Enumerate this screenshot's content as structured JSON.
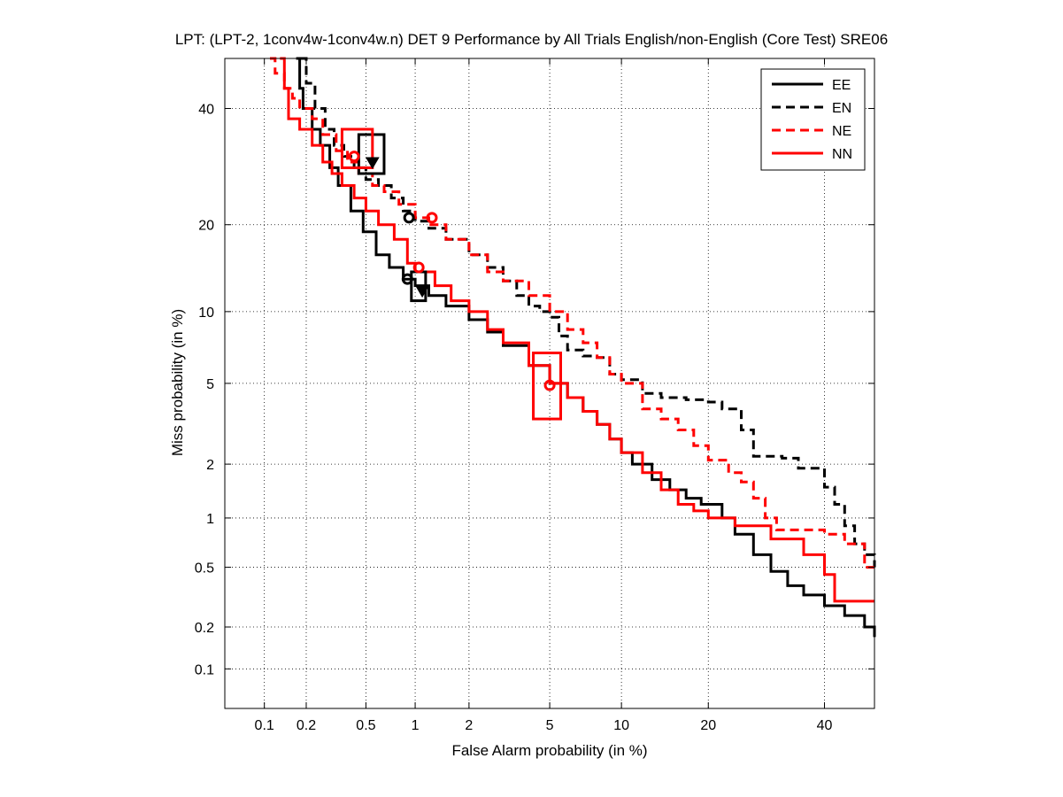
{
  "chart_data": {
    "type": "line",
    "title": "LPT: (LPT-2, 1conv4w-1conv4w.n) DET 9 Performance by All Trials English/non-English (Core Test) SRE06",
    "xlabel": "False Alarm probability (in %)",
    "ylabel": "Miss probability (in %)",
    "x_scale": "probit",
    "y_scale": "probit",
    "xlim": [
      0.05,
      50
    ],
    "ylim": [
      0.05,
      50
    ],
    "xticks": [
      0.1,
      0.2,
      0.5,
      1,
      2,
      5,
      10,
      20,
      40
    ],
    "xtick_labels": [
      "0.1",
      "0.2",
      "0.5",
      "1",
      "2",
      "5",
      "10",
      "20",
      "40"
    ],
    "yticks": [
      0.1,
      0.2,
      0.5,
      1,
      2,
      5,
      10,
      20,
      40
    ],
    "ytick_labels": [
      "0.1",
      "0.2",
      "0.5",
      "1",
      "2",
      "5",
      "10",
      "20",
      "40"
    ],
    "grid": true,
    "legend_position": "top-right",
    "series": [
      {
        "name": "EE",
        "color": "#000000",
        "dash": "solid",
        "points": [
          [
            0.17,
            50
          ],
          [
            0.18,
            44
          ],
          [
            0.19,
            40
          ],
          [
            0.22,
            36
          ],
          [
            0.25,
            33
          ],
          [
            0.29,
            29
          ],
          [
            0.33,
            26
          ],
          [
            0.4,
            22
          ],
          [
            0.48,
            19
          ],
          [
            0.58,
            16
          ],
          [
            0.7,
            14.5
          ],
          [
            0.85,
            13.2
          ],
          [
            1.0,
            12.5
          ],
          [
            1.2,
            11.5
          ],
          [
            1.5,
            10.5
          ],
          [
            2,
            9.3
          ],
          [
            2.5,
            8.3
          ],
          [
            3,
            7.3
          ],
          [
            4,
            6.0
          ],
          [
            5,
            5.0
          ],
          [
            6,
            4.3
          ],
          [
            7,
            3.7
          ],
          [
            8,
            3.2
          ],
          [
            9,
            2.7
          ],
          [
            10,
            2.3
          ],
          [
            11,
            2.0
          ],
          [
            13,
            1.65
          ],
          [
            15,
            1.45
          ],
          [
            17,
            1.3
          ],
          [
            19,
            1.2
          ],
          [
            22,
            1.0
          ],
          [
            24,
            0.8
          ],
          [
            27,
            0.6
          ],
          [
            30,
            0.47
          ],
          [
            33,
            0.38
          ],
          [
            36,
            0.33
          ],
          [
            40,
            0.28
          ],
          [
            44,
            0.24
          ],
          [
            48,
            0.2
          ],
          [
            50,
            0.17
          ]
        ]
      },
      {
        "name": "EN",
        "color": "#000000",
        "dash": "dashed",
        "points": [
          [
            0.18,
            50
          ],
          [
            0.2,
            45
          ],
          [
            0.23,
            40
          ],
          [
            0.27,
            36
          ],
          [
            0.31,
            33
          ],
          [
            0.36,
            31
          ],
          [
            0.42,
            29
          ],
          [
            0.5,
            27
          ],
          [
            0.6,
            26
          ],
          [
            0.72,
            24
          ],
          [
            0.85,
            22
          ],
          [
            1.0,
            20.5
          ],
          [
            1.2,
            19.5
          ],
          [
            1.5,
            18
          ],
          [
            2,
            16
          ],
          [
            2.5,
            14.5
          ],
          [
            3,
            13
          ],
          [
            3.5,
            11.5
          ],
          [
            4,
            10.5
          ],
          [
            4.5,
            10
          ],
          [
            5,
            9.5
          ],
          [
            5.5,
            8
          ],
          [
            6,
            7
          ],
          [
            7,
            6.6
          ],
          [
            8,
            6.5
          ],
          [
            9,
            5.5
          ],
          [
            10,
            5.2
          ],
          [
            12,
            4.5
          ],
          [
            14,
            4.3
          ],
          [
            17,
            4.2
          ],
          [
            20,
            4.1
          ],
          [
            22,
            3.8
          ],
          [
            25,
            3.0
          ],
          [
            27,
            2.2
          ],
          [
            32,
            2.15
          ],
          [
            35,
            1.9
          ],
          [
            40,
            1.5
          ],
          [
            42,
            1.2
          ],
          [
            44,
            0.9
          ],
          [
            46,
            0.7
          ],
          [
            48,
            0.6
          ],
          [
            50,
            0.5
          ]
        ]
      },
      {
        "name": "NE",
        "color": "#ff0000",
        "dash": "dashed",
        "points": [
          [
            0.11,
            50
          ],
          [
            0.12,
            47
          ],
          [
            0.14,
            44
          ],
          [
            0.16,
            42
          ],
          [
            0.18,
            40
          ],
          [
            0.22,
            38
          ],
          [
            0.26,
            35
          ],
          [
            0.32,
            32
          ],
          [
            0.38,
            30
          ],
          [
            0.45,
            28
          ],
          [
            0.55,
            26
          ],
          [
            0.65,
            25
          ],
          [
            0.8,
            23
          ],
          [
            1.0,
            21
          ],
          [
            1.2,
            20
          ],
          [
            1.5,
            18
          ],
          [
            2,
            16
          ],
          [
            2.5,
            14
          ],
          [
            3,
            13
          ],
          [
            4,
            11.5
          ],
          [
            5,
            10
          ],
          [
            6,
            8.5
          ],
          [
            7,
            7.5
          ],
          [
            8,
            6.5
          ],
          [
            9,
            5.5
          ],
          [
            10,
            5.0
          ],
          [
            12,
            3.8
          ],
          [
            14,
            3.4
          ],
          [
            16,
            3.0
          ],
          [
            18,
            2.5
          ],
          [
            20,
            2.1
          ],
          [
            23,
            1.8
          ],
          [
            25,
            1.6
          ],
          [
            27,
            1.3
          ],
          [
            29,
            1.0
          ],
          [
            31,
            0.85
          ],
          [
            35,
            0.85
          ],
          [
            40,
            0.8
          ],
          [
            44,
            0.7
          ],
          [
            48,
            0.5
          ],
          [
            50,
            0.5
          ]
        ]
      },
      {
        "name": "NN",
        "color": "#ff0000",
        "dash": "solid",
        "points": [
          [
            0.13,
            50
          ],
          [
            0.14,
            44
          ],
          [
            0.15,
            38
          ],
          [
            0.18,
            36
          ],
          [
            0.22,
            33
          ],
          [
            0.26,
            30
          ],
          [
            0.3,
            28
          ],
          [
            0.35,
            26
          ],
          [
            0.42,
            24
          ],
          [
            0.5,
            22
          ],
          [
            0.6,
            20
          ],
          [
            0.75,
            18
          ],
          [
            0.9,
            15
          ],
          [
            1.0,
            14
          ],
          [
            1.3,
            12.5
          ],
          [
            1.6,
            11
          ],
          [
            2,
            10
          ],
          [
            2.5,
            8.5
          ],
          [
            3,
            7.5
          ],
          [
            4,
            6
          ],
          [
            5,
            5.0
          ],
          [
            6,
            4.3
          ],
          [
            7,
            3.7
          ],
          [
            8,
            3.2
          ],
          [
            9,
            2.7
          ],
          [
            10,
            2.3
          ],
          [
            12,
            1.8
          ],
          [
            14,
            1.45
          ],
          [
            16,
            1.2
          ],
          [
            18,
            1.1
          ],
          [
            20,
            1.0
          ],
          [
            24,
            0.9
          ],
          [
            30,
            0.75
          ],
          [
            36,
            0.6
          ],
          [
            40,
            0.45
          ],
          [
            42,
            0.3
          ],
          [
            50,
            0.3
          ]
        ]
      }
    ],
    "markers": [
      {
        "series": "EE",
        "shape": "circle",
        "x": 0.9,
        "y": 13.2
      },
      {
        "series": "EE",
        "shape": "triangle",
        "x": 1.1,
        "y": 12
      },
      {
        "series": "EN",
        "shape": "circle",
        "x": 0.92,
        "y": 21
      },
      {
        "series": "EN",
        "shape": "triangle",
        "x": 0.55,
        "y": 30
      },
      {
        "series": "NE",
        "shape": "circle",
        "x": 1.25,
        "y": 21
      },
      {
        "series": "NE",
        "shape": "circle",
        "x": 0.42,
        "y": 31
      },
      {
        "series": "NN",
        "shape": "circle",
        "x": 1.05,
        "y": 14.5
      },
      {
        "series": "NN",
        "shape": "circle",
        "x": 5.0,
        "y": 4.9
      }
    ],
    "confidence_boxes": [
      {
        "series": "EE",
        "x": [
          0.95,
          1.15
        ],
        "y": [
          11,
          14
        ]
      },
      {
        "series": "EN",
        "x": [
          0.45,
          0.65
        ],
        "y": [
          28,
          35
        ]
      },
      {
        "series": "NE",
        "x": [
          0.35,
          0.55
        ],
        "y": [
          29,
          36
        ]
      },
      {
        "series": "NN",
        "x": [
          4.2,
          5.6
        ],
        "y": [
          3.4,
          6.8
        ]
      }
    ]
  }
}
